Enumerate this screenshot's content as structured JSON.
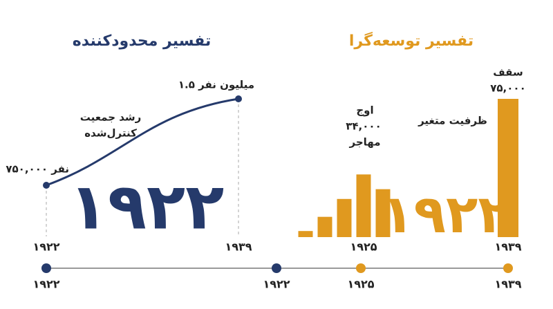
{
  "chart_data": [
    {
      "type": "line",
      "title": "تفسیر محدودکننده",
      "color": "#253a6b",
      "categories": [
        "۱۹۲۲",
        "۱۹۳۹"
      ],
      "values": [
        750000,
        1500000
      ],
      "value_labels": [
        "۷۵۰,۰۰۰ نفر",
        "۱.۵ میلیون نفر"
      ],
      "ylim": [
        300000,
        1500000
      ],
      "annotations": [
        "رشد جمعیت",
        "کنترل‌شده"
      ],
      "watermark": "۱۹۲۲"
    },
    {
      "type": "bar",
      "title": "تفسیر توسعه‌گرا",
      "color": "#e0991f",
      "categories": [
        null,
        null,
        null,
        "۱۹۲۵",
        null,
        "۱۹۳۹"
      ],
      "values": [
        3300,
        11000,
        20700,
        34000,
        26000,
        75000
      ],
      "value_labels": [
        null,
        null,
        null,
        "۳۴,۰۰۰",
        null,
        "۷۵,۰۰۰"
      ],
      "ylim": [
        0,
        75000
      ],
      "annotations": [
        "اوج",
        "مهاجر",
        "سقف",
        "ظرفیت متغیر"
      ],
      "watermark": "۱۹۲۲"
    }
  ],
  "timeline": {
    "points": [
      {
        "label": "۱۹۲۲",
        "color": "#253a6b"
      },
      {
        "label": "۱۹۲۲",
        "color": "#253a6b"
      },
      {
        "label": "۱۹۲۵",
        "color": "#e0991f"
      },
      {
        "label": "۱۹۳۹",
        "color": "#e0991f"
      }
    ]
  }
}
